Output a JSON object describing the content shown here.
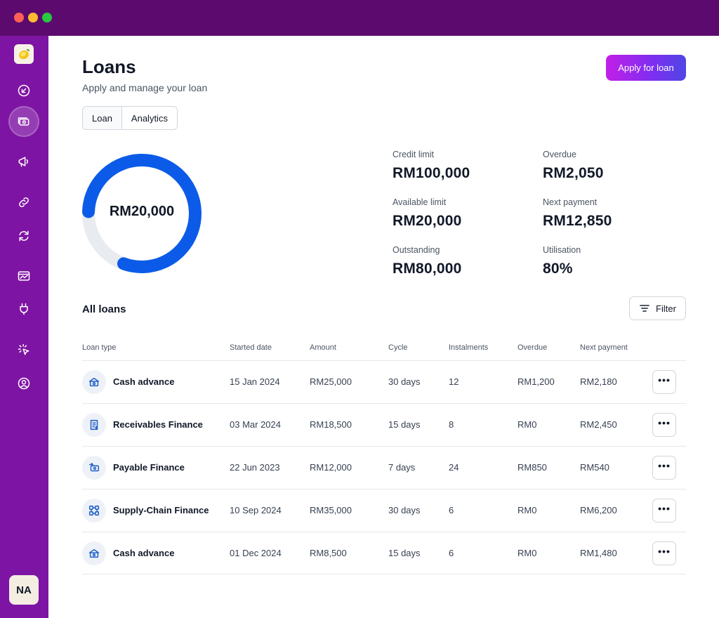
{
  "window": {
    "traffic_lights": [
      "close",
      "minimize",
      "zoom"
    ]
  },
  "sidebar": {
    "logo": "lemon-logo",
    "items": [
      {
        "icon": "arrow-down-left-icon",
        "active": false
      },
      {
        "icon": "cash-icon",
        "active": true
      },
      {
        "icon": "megaphone-icon",
        "active": false
      },
      {
        "icon": "link-icon",
        "active": false
      },
      {
        "icon": "sync-icon",
        "active": false
      },
      {
        "icon": "chart-card-icon",
        "active": false
      },
      {
        "icon": "plug-icon",
        "active": false
      },
      {
        "icon": "cursor-click-icon",
        "active": false
      },
      {
        "icon": "user-circle-icon",
        "active": false
      }
    ],
    "avatar_initials": "NA"
  },
  "header": {
    "title": "Loans",
    "subtitle": "Apply and manage your loan",
    "apply_label": "Apply for loan"
  },
  "tabs": [
    {
      "label": "Loan",
      "active": true
    },
    {
      "label": "Analytics",
      "active": false
    }
  ],
  "donut": {
    "center_label": "RM20,000",
    "fill_fraction": 0.8,
    "colors": {
      "fill": "#0b5be8",
      "track": "#e8ebef"
    }
  },
  "stats": [
    {
      "label": "Credit limit",
      "value": "RM100,000"
    },
    {
      "label": "Overdue",
      "value": "RM2,050"
    },
    {
      "label": "Available limit",
      "value": "RM20,000"
    },
    {
      "label": "Next payment",
      "value": "RM12,850"
    },
    {
      "label": "Outstanding",
      "value": "RM80,000"
    },
    {
      "label": "Utilisation",
      "value": "80%"
    }
  ],
  "loans": {
    "title": "All loans",
    "filter_label": "Filter",
    "columns": [
      "Loan type",
      "Started date",
      "Amount",
      "Cycle",
      "Instalments",
      "Overdue",
      "Next payment"
    ],
    "rows": [
      {
        "icon": "cash-advance-icon",
        "type": "Cash advance",
        "started": "15 Jan 2024",
        "amount": "RM25,000",
        "cycle": "30 days",
        "instalments": "12",
        "overdue": "RM1,200",
        "next_payment": "RM2,180",
        "more": "•••"
      },
      {
        "icon": "receivables-icon",
        "type": "Receivables Finance",
        "started": "03 Mar 2024",
        "amount": "RM18,500",
        "cycle": "15 days",
        "instalments": "8",
        "overdue": "RM0",
        "next_payment": "RM2,450",
        "more": "•••"
      },
      {
        "icon": "payable-icon",
        "type": "Payable Finance",
        "started": "22 Jun 2023",
        "amount": "RM12,000",
        "cycle": "7 days",
        "instalments": "24",
        "overdue": "RM850",
        "next_payment": "RM540",
        "more": "•••"
      },
      {
        "icon": "supply-chain-icon",
        "type": "Supply-Chain Finance",
        "started": "10 Sep 2024",
        "amount": "RM35,000",
        "cycle": "30 days",
        "instalments": "6",
        "overdue": "RM0",
        "next_payment": "RM6,200",
        "more": "•••"
      },
      {
        "icon": "cash-advance-icon",
        "type": "Cash advance",
        "started": "01 Dec 2024",
        "amount": "RM8,500",
        "cycle": "15 days",
        "instalments": "6",
        "overdue": "RM0",
        "next_payment": "RM1,480",
        "more": "•••"
      }
    ]
  },
  "colors": {
    "sidebar": "#7e14a3",
    "titlebar": "#5c0a6e",
    "accent_gradient_start": "#c21fe8",
    "accent_gradient_end": "#4f46e5",
    "icon_blue": "#2563c9"
  }
}
